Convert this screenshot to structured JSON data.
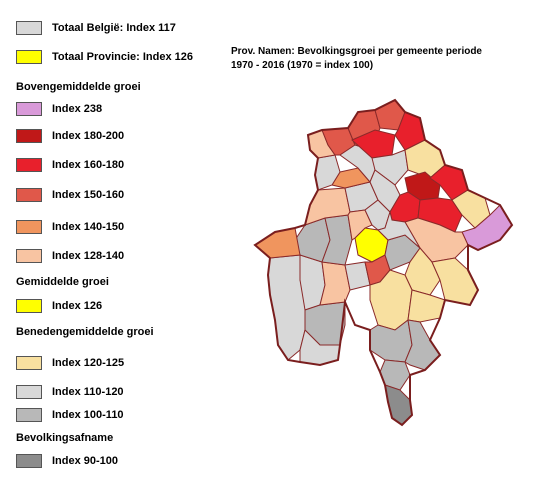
{
  "legend": {
    "totals": [
      {
        "label": "Totaal België: Index 117",
        "color": "#d8d8d8"
      },
      {
        "label": "Totaal Provincie: Index 126",
        "color": "#ffff00"
      }
    ],
    "sections": [
      {
        "heading": "Bovengemiddelde groei",
        "items": [
          {
            "label": "Index 238",
            "color": "#d99ad9"
          },
          {
            "label": "Index 180-200",
            "color": "#c01818"
          },
          {
            "label": "Index 160-180",
            "color": "#e8202c"
          },
          {
            "label": "Index 150-160",
            "color": "#e0584a"
          },
          {
            "label": "Index 140-150",
            "color": "#f0955e"
          },
          {
            "label": "Index 128-140",
            "color": "#f8c4a2"
          }
        ]
      },
      {
        "heading": "Gemiddelde groei",
        "items": [
          {
            "label": "Index 126",
            "color": "#ffff00"
          }
        ]
      },
      {
        "heading": "Benedengemiddelde groei",
        "items": [
          {
            "label": "Index 120-125",
            "color": "#f8e0a0"
          },
          {
            "label": "Index 110-120",
            "color": "#d8d8d8"
          },
          {
            "label": "Index 100-110",
            "color": "#b8b8b8"
          }
        ]
      },
      {
        "heading": "Bevolkingsafname",
        "items": [
          {
            "label": "Index 90-100",
            "color": "#8c8c8c"
          }
        ]
      }
    ]
  },
  "map": {
    "title_line1": "Prov. Namen: Bevolkingsgroei per gemeente periode",
    "title_line2": "1970 - 2016 (1970 = index 100)"
  }
}
